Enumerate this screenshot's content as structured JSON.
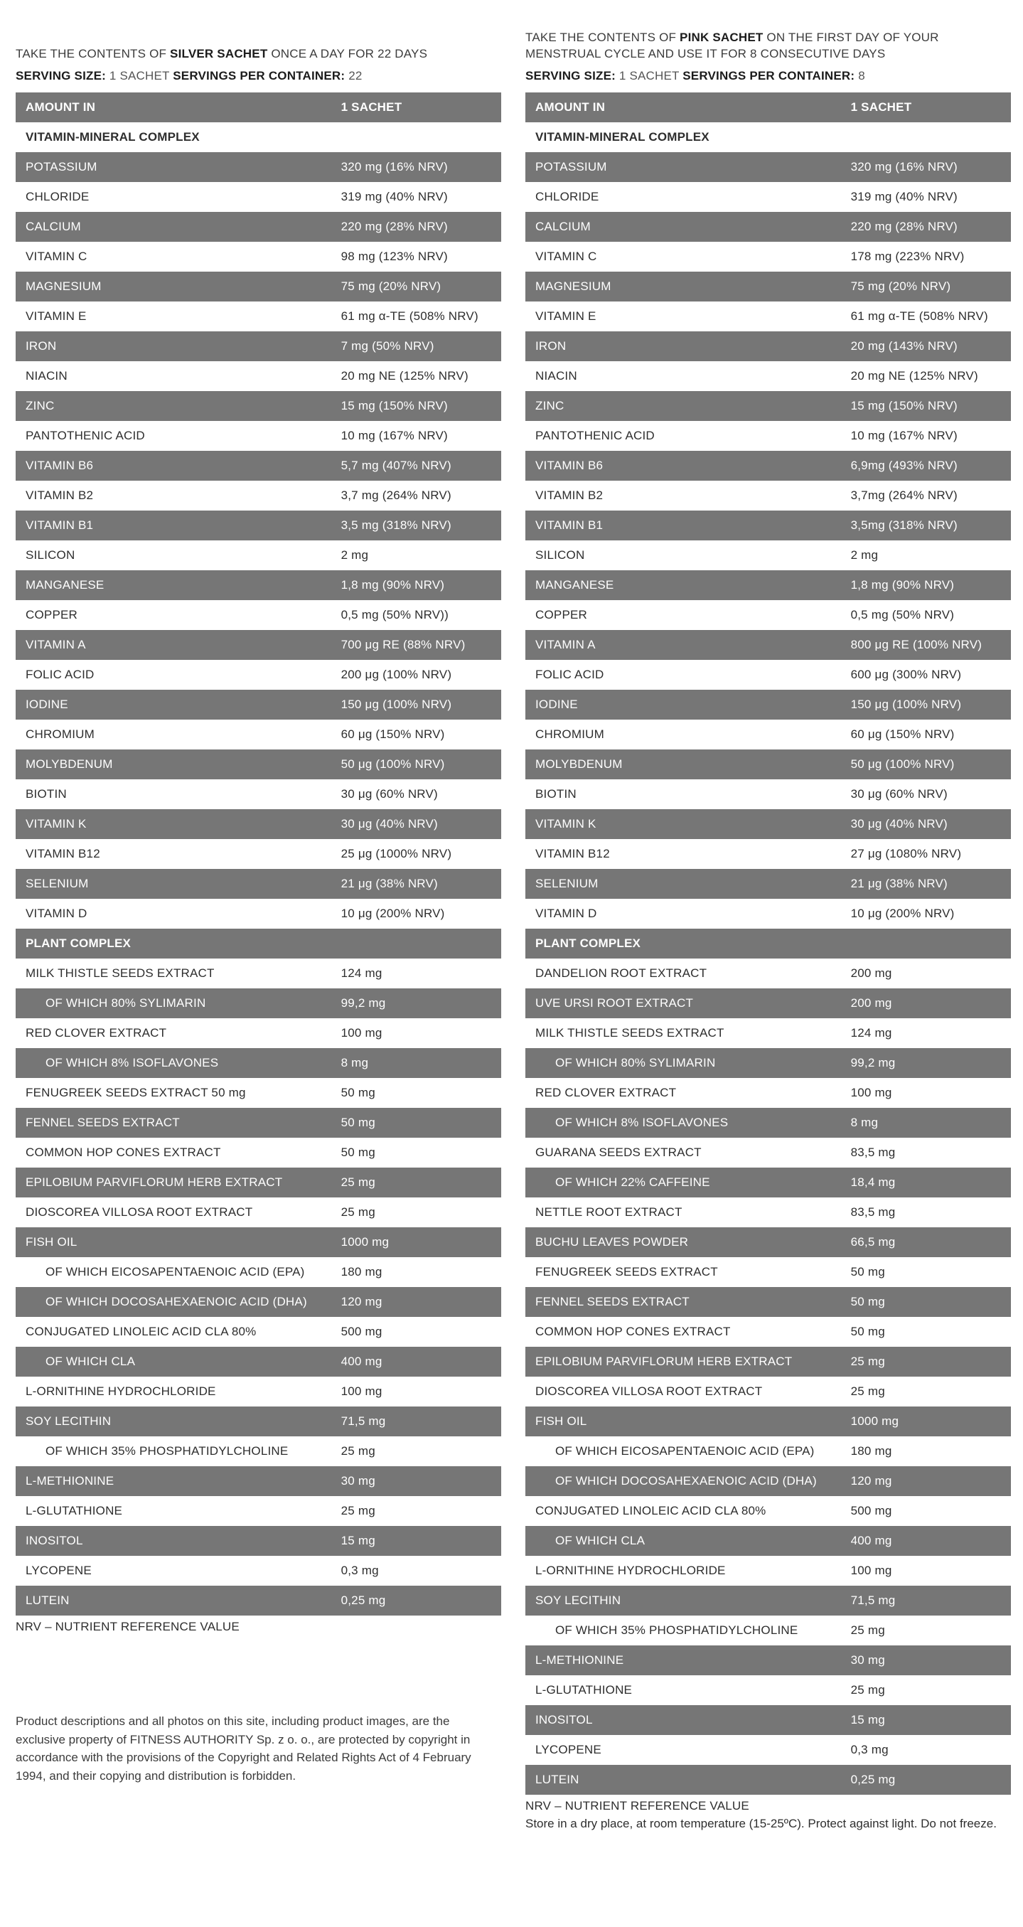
{
  "colors": {
    "row_gray": "#767676",
    "row_text_light": "#ffffff",
    "text_dark": "#2e2e2e",
    "page_bg": "#ffffff"
  },
  "columns": {
    "silver": {
      "instruction": {
        "pre": "TAKE THE CONTENTS OF ",
        "bold": "SILVER SACHET",
        "post": " ONCE A DAY FOR 22 DAYS"
      },
      "serving": {
        "size_label": "SERVING SIZE: ",
        "size_value": "1 SACHET ",
        "per_label": "SERVINGS PER CONTAINER: ",
        "per_value": "22"
      },
      "table": {
        "header": {
          "col1": "AMOUNT IN",
          "col2": "1 SACHET"
        },
        "rows": [
          {
            "label": "VITAMIN-MINERAL COMPLEX",
            "section": true,
            "shade": "white"
          },
          {
            "label": "POTASSIUM",
            "value": "320 mg (16% NRV)",
            "shade": "gray"
          },
          {
            "label": "CHLORIDE",
            "value": "319 mg (40% NRV)",
            "shade": "white"
          },
          {
            "label": "CALCIUM",
            "value": "220 mg (28% NRV)",
            "shade": "gray"
          },
          {
            "label": "VITAMIN C",
            "value": "98 mg (123% NRV)",
            "shade": "white"
          },
          {
            "label": "MAGNESIUM",
            "value": "75 mg (20% NRV)",
            "shade": "gray"
          },
          {
            "label": "VITAMIN E",
            "value": "61 mg α-TE (508% NRV)",
            "shade": "white"
          },
          {
            "label": "IRON",
            "value": "7 mg (50% NRV)",
            "shade": "gray"
          },
          {
            "label": "NIACIN",
            "value": "20 mg NE (125% NRV)",
            "shade": "white"
          },
          {
            "label": "ZINC",
            "value": "15 mg (150% NRV)",
            "shade": "gray"
          },
          {
            "label": "PANTOTHENIC ACID",
            "value": "10 mg (167% NRV)",
            "shade": "white"
          },
          {
            "label": "VITAMIN B6",
            "value": "5,7 mg (407% NRV)",
            "shade": "gray"
          },
          {
            "label": "VITAMIN B2",
            "value": "3,7 mg (264% NRV)",
            "shade": "white"
          },
          {
            "label": "VITAMIN B1",
            "value": "3,5 mg (318% NRV)",
            "shade": "gray"
          },
          {
            "label": "SILICON",
            "value": "2 mg",
            "shade": "white"
          },
          {
            "label": "MANGANESE",
            "value": "1,8 mg (90% NRV)",
            "shade": "gray"
          },
          {
            "label": "COPPER",
            "value": "0,5 mg (50% NRV))",
            "shade": "white"
          },
          {
            "label": "VITAMIN A",
            "value": "700 μg RE (88% NRV)",
            "shade": "gray"
          },
          {
            "label": "FOLIC ACID",
            "value": "200 μg (100% NRV)",
            "shade": "white"
          },
          {
            "label": "IODINE",
            "value": "150 μg (100% NRV)",
            "shade": "gray"
          },
          {
            "label": "CHROMIUM",
            "value": "60 μg (150% NRV)",
            "shade": "white"
          },
          {
            "label": "MOLYBDENUM",
            "value": "50 μg (100% NRV)",
            "shade": "gray"
          },
          {
            "label": "BIOTIN",
            "value": "30 μg (60% NRV)",
            "shade": "white"
          },
          {
            "label": "VITAMIN K",
            "value": "30 μg (40% NRV)",
            "shade": "gray"
          },
          {
            "label": "VITAMIN B12",
            "value": "25 μg (1000% NRV)",
            "shade": "white"
          },
          {
            "label": "SELENIUM",
            "value": "21 μg (38% NRV)",
            "shade": "gray"
          },
          {
            "label": "VITAMIN D",
            "value": "10 μg (200% NRV)",
            "shade": "white"
          },
          {
            "label": "PLANT COMPLEX",
            "section": true,
            "shade": "gray"
          },
          {
            "label": "MILK THISTLE SEEDS EXTRACT",
            "value": "124 mg",
            "shade": "white"
          },
          {
            "label": "OF WHICH 80% SYLIMARIN",
            "value": "99,2 mg",
            "shade": "gray",
            "indent": true
          },
          {
            "label": "RED CLOVER EXTRACT",
            "value": "100 mg",
            "shade": "white"
          },
          {
            "label": "OF WHICH 8% ISOFLAVONES",
            "value": "8 mg",
            "shade": "gray",
            "indent": true
          },
          {
            "label": "FENUGREEK SEEDS EXTRACT 50 mg",
            "value": "50 mg",
            "shade": "white"
          },
          {
            "label": "FENNEL SEEDS EXTRACT",
            "value": "50 mg",
            "shade": "gray"
          },
          {
            "label": "COMMON HOP CONES EXTRACT",
            "value": "50 mg",
            "shade": "white"
          },
          {
            "label": "EPILOBIUM PARVIFLORUM HERB EXTRACT",
            "value": "25 mg",
            "shade": "gray"
          },
          {
            "label": "DIOSCOREA VILLOSA ROOT EXTRACT",
            "value": "25 mg",
            "shade": "white"
          },
          {
            "label": "FISH OIL",
            "value": "1000 mg",
            "shade": "gray"
          },
          {
            "label": "OF WHICH EICOSAPENTAENOIC ACID (EPA)",
            "value": "180 mg",
            "shade": "white",
            "indent": true
          },
          {
            "label": "OF WHICH DOCOSAHEXAENOIC ACID (DHA)",
            "value": "120 mg",
            "shade": "gray",
            "indent": true
          },
          {
            "label": "CONJUGATED LINOLEIC ACID CLA 80%",
            "value": "500 mg",
            "shade": "white"
          },
          {
            "label": "OF WHICH CLA",
            "value": "400 mg",
            "shade": "gray",
            "indent": true
          },
          {
            "label": "L-ORNITHINE HYDROCHLORIDE",
            "value": "100 mg",
            "shade": "white"
          },
          {
            "label": "SOY LECITHIN",
            "value": "71,5 mg",
            "shade": "gray"
          },
          {
            "label": "OF WHICH 35% PHOSPHATIDYLCHOLINE",
            "value": "25 mg",
            "shade": "white",
            "indent": true
          },
          {
            "label": "L-METHIONINE",
            "value": "30 mg",
            "shade": "gray"
          },
          {
            "label": "L-GLUTATHIONE",
            "value": "25 mg",
            "shade": "white"
          },
          {
            "label": "INOSITOL",
            "value": "15 mg",
            "shade": "gray"
          },
          {
            "label": "LYCOPENE",
            "value": "0,3 mg",
            "shade": "white"
          },
          {
            "label": "LUTEIN",
            "value": "0,25 mg",
            "shade": "gray"
          }
        ]
      },
      "footnote": "NRV – NUTRIENT REFERENCE VALUE",
      "copyright": "Product descriptions and all photos on this site, including product images, are the exclusive property of FITNESS AUTHORITY Sp. z o. o., are protected by copyright in accordance with the provisions of the Copyright and Related Rights Act of 4 February 1994, and their copying and distribution is forbidden."
    },
    "pink": {
      "instruction": {
        "pre": "TAKE THE CONTENTS OF ",
        "bold": "PINK SACHET",
        "post": " ON THE FIRST DAY OF YOUR MENSTRUAL CYCLE AND USE IT FOR 8 CONSECUTIVE DAYS"
      },
      "serving": {
        "size_label": "SERVING SIZE: ",
        "size_value": "1 SACHET ",
        "per_label": "SERVINGS PER CONTAINER: ",
        "per_value": "8"
      },
      "table": {
        "header": {
          "col1": "AMOUNT IN",
          "col2": "1 SACHET"
        },
        "rows": [
          {
            "label": "VITAMIN-MINERAL COMPLEX",
            "section": true,
            "shade": "white"
          },
          {
            "label": "POTASSIUM",
            "value": "320 mg (16% NRV)",
            "shade": "gray"
          },
          {
            "label": "CHLORIDE",
            "value": "319 mg (40% NRV)",
            "shade": "white"
          },
          {
            "label": "CALCIUM",
            "value": "220 mg (28% NRV)",
            "shade": "gray"
          },
          {
            "label": "VITAMIN C",
            "value": "178 mg (223% NRV)",
            "shade": "white"
          },
          {
            "label": "MAGNESIUM",
            "value": "75 mg (20% NRV)",
            "shade": "gray"
          },
          {
            "label": "VITAMIN E",
            "value": "61 mg α-TE (508% NRV)",
            "shade": "white"
          },
          {
            "label": "IRON",
            "value": "20 mg (143% NRV)",
            "shade": "gray"
          },
          {
            "label": "NIACIN",
            "value": "20 mg NE (125% NRV)",
            "shade": "white"
          },
          {
            "label": "ZINC",
            "value": "15 mg (150% NRV)",
            "shade": "gray"
          },
          {
            "label": "PANTOTHENIC ACID",
            "value": "10 mg (167% NRV)",
            "shade": "white"
          },
          {
            "label": "VITAMIN B6",
            "value": "6,9mg (493% NRV)",
            "shade": "gray"
          },
          {
            "label": "VITAMIN B2",
            "value": "3,7mg (264% NRV)",
            "shade": "white"
          },
          {
            "label": "VITAMIN B1",
            "value": "3,5mg (318% NRV)",
            "shade": "gray"
          },
          {
            "label": "SILICON",
            "value": "2 mg",
            "shade": "white"
          },
          {
            "label": "MANGANESE",
            "value": "1,8 mg (90% NRV)",
            "shade": "gray"
          },
          {
            "label": "COPPER",
            "value": "0,5 mg (50% NRV)",
            "shade": "white"
          },
          {
            "label": "VITAMIN A",
            "value": "800 μg RE (100% NRV)",
            "shade": "gray"
          },
          {
            "label": "FOLIC ACID",
            "value": "600 μg (300% NRV)",
            "shade": "white"
          },
          {
            "label": "IODINE",
            "value": "150 μg (100% NRV)",
            "shade": "gray"
          },
          {
            "label": "CHROMIUM",
            "value": "60 μg (150% NRV)",
            "shade": "white"
          },
          {
            "label": "MOLYBDENUM",
            "value": "50 μg (100% NRV)",
            "shade": "gray"
          },
          {
            "label": "BIOTIN",
            "value": "30 μg (60% NRV)",
            "shade": "white"
          },
          {
            "label": "VITAMIN K",
            "value": "30 μg (40% NRV)",
            "shade": "gray"
          },
          {
            "label": "VITAMIN B12",
            "value": "27 μg (1080% NRV)",
            "shade": "white"
          },
          {
            "label": "SELENIUM",
            "value": "21 μg (38% NRV)",
            "shade": "gray"
          },
          {
            "label": "VITAMIN D",
            "value": "10 μg (200% NRV)",
            "shade": "white"
          },
          {
            "label": "PLANT COMPLEX",
            "section": true,
            "shade": "gray"
          },
          {
            "label": "DANDELION ROOT EXTRACT",
            "value": "200 mg",
            "shade": "white"
          },
          {
            "label": "UVE URSI ROOT EXTRACT",
            "value": "200 mg",
            "shade": "gray"
          },
          {
            "label": "MILK THISTLE SEEDS EXTRACT",
            "value": "124 mg",
            "shade": "white"
          },
          {
            "label": "OF WHICH 80% SYLIMARIN",
            "value": "99,2 mg",
            "shade": "gray",
            "indent": true
          },
          {
            "label": "RED CLOVER EXTRACT",
            "value": "100 mg",
            "shade": "white"
          },
          {
            "label": "OF WHICH 8% ISOFLAVONES",
            "value": "8 mg",
            "shade": "gray",
            "indent": true
          },
          {
            "label": "GUARANA SEEDS EXTRACT",
            "value": "83,5 mg",
            "shade": "white"
          },
          {
            "label": "OF WHICH 22% CAFFEINE",
            "value": "18,4 mg",
            "shade": "gray",
            "indent": true
          },
          {
            "label": "NETTLE ROOT EXTRACT",
            "value": "83,5 mg",
            "shade": "white"
          },
          {
            "label": "BUCHU LEAVES POWDER",
            "value": "66,5 mg",
            "shade": "gray"
          },
          {
            "label": "FENUGREEK SEEDS EXTRACT",
            "value": "50 mg",
            "shade": "white"
          },
          {
            "label": "FENNEL SEEDS EXTRACT",
            "value": "50 mg",
            "shade": "gray"
          },
          {
            "label": "COMMON HOP CONES EXTRACT",
            "value": "50 mg",
            "shade": "white"
          },
          {
            "label": "EPILOBIUM PARVIFLORUM HERB EXTRACT",
            "value": "25 mg",
            "shade": "gray"
          },
          {
            "label": "DIOSCOREA VILLOSA ROOT EXTRACT",
            "value": "25 mg",
            "shade": "white"
          },
          {
            "label": "FISH OIL",
            "value": "1000 mg",
            "shade": "gray"
          },
          {
            "label": "OF WHICH EICOSAPENTAENOIC ACID (EPA)",
            "value": "180 mg",
            "shade": "white",
            "indent": true
          },
          {
            "label": "OF WHICH DOCOSAHEXAENOIC ACID (DHA)",
            "value": "120 mg",
            "shade": "gray",
            "indent": true
          },
          {
            "label": "CONJUGATED LINOLEIC ACID CLA 80%",
            "value": "500 mg",
            "shade": "white"
          },
          {
            "label": "OF WHICH CLA",
            "value": "400 mg",
            "shade": "gray",
            "indent": true
          },
          {
            "label": "L-ORNITHINE HYDROCHLORIDE",
            "value": "100 mg",
            "shade": "white"
          },
          {
            "label": "SOY LECITHIN",
            "value": "71,5 mg",
            "shade": "gray"
          },
          {
            "label": "OF WHICH 35% PHOSPHATIDYLCHOLINE",
            "value": "25 mg",
            "shade": "white",
            "indent": true
          },
          {
            "label": "L-METHIONINE",
            "value": "30 mg",
            "shade": "gray"
          },
          {
            "label": "L-GLUTATHIONE",
            "value": "25 mg",
            "shade": "white"
          },
          {
            "label": "INOSITOL",
            "value": "15 mg",
            "shade": "gray"
          },
          {
            "label": "LYCOPENE",
            "value": "0,3 mg",
            "shade": "white"
          },
          {
            "label": "LUTEIN",
            "value": "0,25 mg",
            "shade": "gray"
          }
        ]
      },
      "footnote": "NRV – NUTRIENT REFERENCE VALUE",
      "storage": "Store in a dry place, at room temperature (15-25ºC). Protect against light. Do not freeze."
    }
  }
}
